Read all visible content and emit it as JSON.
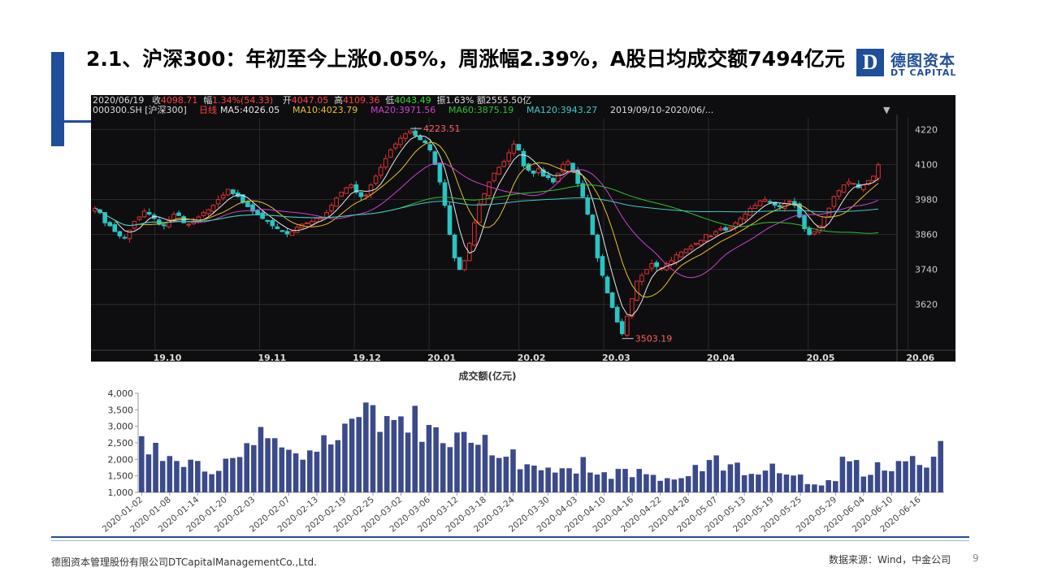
{
  "slide": {
    "title": "2.1、沪深300：年初至今上涨0.05%，周涨幅2.39%，A股日均成交额7494亿元",
    "logo_mark": "D",
    "logo_cn": "德图资本",
    "logo_en": "DT CAPITAL",
    "footer_left": "德图资本管理股份有限公司DTCapitalManagementCo.,Ltd.",
    "footer_right": "数据来源：Wind，中金公司",
    "page_number": "9",
    "colors": {
      "brand": "#1f4e9a",
      "up": "#e03030",
      "down": "#2bc4c4",
      "bar": "#3a4a8a"
    }
  },
  "kline_header": {
    "row1": [
      {
        "text": "2020/06/19",
        "color": "#dddddd"
      },
      {
        "text": "收",
        "color": "#dddddd"
      },
      {
        "text": "4098.71",
        "color": "#ff4040"
      },
      {
        "text": "幅",
        "color": "#dddddd"
      },
      {
        "text": "1.34%(54.33)",
        "color": "#ff4040"
      },
      {
        "text": "开",
        "color": "#dddddd"
      },
      {
        "text": "4047.05",
        "color": "#ff4040"
      },
      {
        "text": "高",
        "color": "#dddddd"
      },
      {
        "text": "4109.36",
        "color": "#ff4040"
      },
      {
        "text": "低",
        "color": "#dddddd"
      },
      {
        "text": "4043.49",
        "color": "#33dd33"
      },
      {
        "text": "振",
        "color": "#dddddd"
      },
      {
        "text": "1.63%",
        "color": "#dddddd"
      },
      {
        "text": "额",
        "color": "#dddddd"
      },
      {
        "text": "2555.50亿",
        "color": "#dddddd"
      }
    ],
    "row2": [
      {
        "text": "000300.SH [沪深300]",
        "color": "#dddddd"
      },
      {
        "text": "日线",
        "color": "#ff4040"
      },
      {
        "text": "MA5:4026.05",
        "color": "#e8e8e8"
      },
      {
        "text": "MA10:4023.79",
        "color": "#e8c030"
      },
      {
        "text": "MA20:3971.56",
        "color": "#d040d0"
      },
      {
        "text": "MA60:3875.19",
        "color": "#30c030"
      },
      {
        "text": "MA120:3943.27",
        "color": "#40c8c8"
      },
      {
        "text": "2019/09/10-2020/06/...",
        "color": "#dddddd"
      }
    ]
  },
  "chart_data": [
    {
      "type": "candlestick",
      "title": "000300.SH [沪深300] 日线",
      "x_ticks": [
        "19.10",
        "19.11",
        "19.12",
        "20.01",
        "20.02",
        "20.03",
        "20.04",
        "20.05",
        "20.06"
      ],
      "y_ticks": [
        3620,
        3740,
        3860,
        3980,
        4100,
        4220
      ],
      "ylim": [
        3480,
        4260
      ],
      "annotations": [
        {
          "label": "4223.51",
          "value": 4223.51
        },
        {
          "label": "3503.19",
          "value": 3503.19
        }
      ],
      "close_path": [
        3950,
        3935,
        3900,
        3890,
        3870,
        3855,
        3850,
        3875,
        3905,
        3920,
        3940,
        3930,
        3915,
        3895,
        3890,
        3910,
        3930,
        3925,
        3900,
        3895,
        3905,
        3920,
        3935,
        3945,
        3960,
        3980,
        3995,
        4015,
        4000,
        3990,
        3970,
        3955,
        3940,
        3930,
        3915,
        3905,
        3890,
        3880,
        3870,
        3862,
        3870,
        3885,
        3895,
        3900,
        3905,
        3915,
        3920,
        3935,
        3960,
        3985,
        4005,
        4020,
        4030,
        4005,
        3990,
        3995,
        4030,
        4060,
        4090,
        4120,
        4150,
        4170,
        4190,
        4205,
        4215,
        4200,
        4185,
        4175,
        4150,
        4100,
        4040,
        3960,
        3860,
        3780,
        3740,
        3770,
        3830,
        3900,
        3965,
        4000,
        4040,
        4070,
        4090,
        4110,
        4140,
        4170,
        4150,
        4095,
        4080,
        4070,
        4085,
        4060,
        4055,
        4040,
        4070,
        4100,
        4110,
        4075,
        4035,
        3990,
        3930,
        3860,
        3780,
        3720,
        3660,
        3610,
        3560,
        3520,
        3580,
        3640,
        3700,
        3720,
        3740,
        3760,
        3750,
        3745,
        3760,
        3770,
        3790,
        3800,
        3810,
        3820,
        3830,
        3840,
        3860,
        3855,
        3870,
        3880,
        3875,
        3885,
        3900,
        3915,
        3930,
        3950,
        3960,
        3975,
        3980,
        3970,
        3960,
        3955,
        3965,
        3975,
        3960,
        3920,
        3880,
        3860,
        3870,
        3890,
        3920,
        3950,
        3990,
        4010,
        4030,
        4040,
        4035,
        4020,
        4030,
        4045,
        4060,
        4098.71
      ],
      "moving_averages": [
        {
          "name": "MA5",
          "value": 4026.05,
          "color": "#e8e8e8"
        },
        {
          "name": "MA10",
          "value": 4023.79,
          "color": "#e8c030"
        },
        {
          "name": "MA20",
          "value": 3971.56,
          "color": "#d040d0"
        },
        {
          "name": "MA60",
          "value": 3875.19,
          "color": "#30c030"
        },
        {
          "name": "MA120",
          "value": 3943.27,
          "color": "#40c8c8"
        }
      ]
    },
    {
      "type": "bar",
      "title": "成交额(亿元)",
      "xlabel": "",
      "ylabel": "",
      "ylim": [
        1000,
        4000
      ],
      "y_ticks": [
        1000,
        1500,
        2000,
        2500,
        3000,
        3500,
        4000
      ],
      "y_tick_labels": [
        "1,000",
        "1,500",
        "2,000",
        "2,500",
        "3,000",
        "3,500",
        "4,000"
      ],
      "x_tick_labels": [
        "2020-01-02",
        "2020-01-08",
        "2020-01-14",
        "2020-01-20",
        "2020-02-03",
        "2020-02-07",
        "2020-02-13",
        "2020-02-19",
        "2020-02-25",
        "2020-03-02",
        "2020-03-06",
        "2020-03-12",
        "2020-03-18",
        "2020-03-24",
        "2020-03-30",
        "2020-04-03",
        "2020-04-10",
        "2020-04-16",
        "2020-04-22",
        "2020-04-28",
        "2020-05-07",
        "2020-05-13",
        "2020-05-19",
        "2020-05-25",
        "2020-05-29",
        "2020-06-04",
        "2020-06-10",
        "2020-06-16"
      ],
      "values": [
        2700,
        2150,
        2500,
        1950,
        2100,
        1950,
        1770,
        1990,
        1950,
        1630,
        1550,
        1650,
        2020,
        2040,
        2070,
        2490,
        2430,
        2980,
        2640,
        2640,
        2360,
        2290,
        2180,
        1990,
        2270,
        2230,
        2730,
        2450,
        2580,
        3080,
        3230,
        3280,
        3720,
        3640,
        2830,
        3310,
        3190,
        3300,
        2810,
        3620,
        2530,
        3040,
        2970,
        2490,
        2370,
        2810,
        2830,
        2500,
        2440,
        2740,
        2120,
        2040,
        2080,
        2300,
        1700,
        1850,
        1810,
        1670,
        1750,
        1600,
        1730,
        1730,
        1570,
        2070,
        1600,
        1540,
        1610,
        1410,
        1710,
        1710,
        1460,
        1710,
        1550,
        1530,
        1350,
        1430,
        1390,
        1430,
        1490,
        1830,
        1640,
        1980,
        2120,
        1660,
        1850,
        1900,
        1520,
        1560,
        1540,
        1660,
        1870,
        1580,
        1540,
        1510,
        1540,
        1250,
        1240,
        1210,
        1370,
        1340,
        2080,
        1940,
        1980,
        1480,
        1530,
        1910,
        1660,
        1640,
        1950,
        1940,
        2100,
        1830,
        1750,
        2080,
        2555
      ]
    }
  ]
}
